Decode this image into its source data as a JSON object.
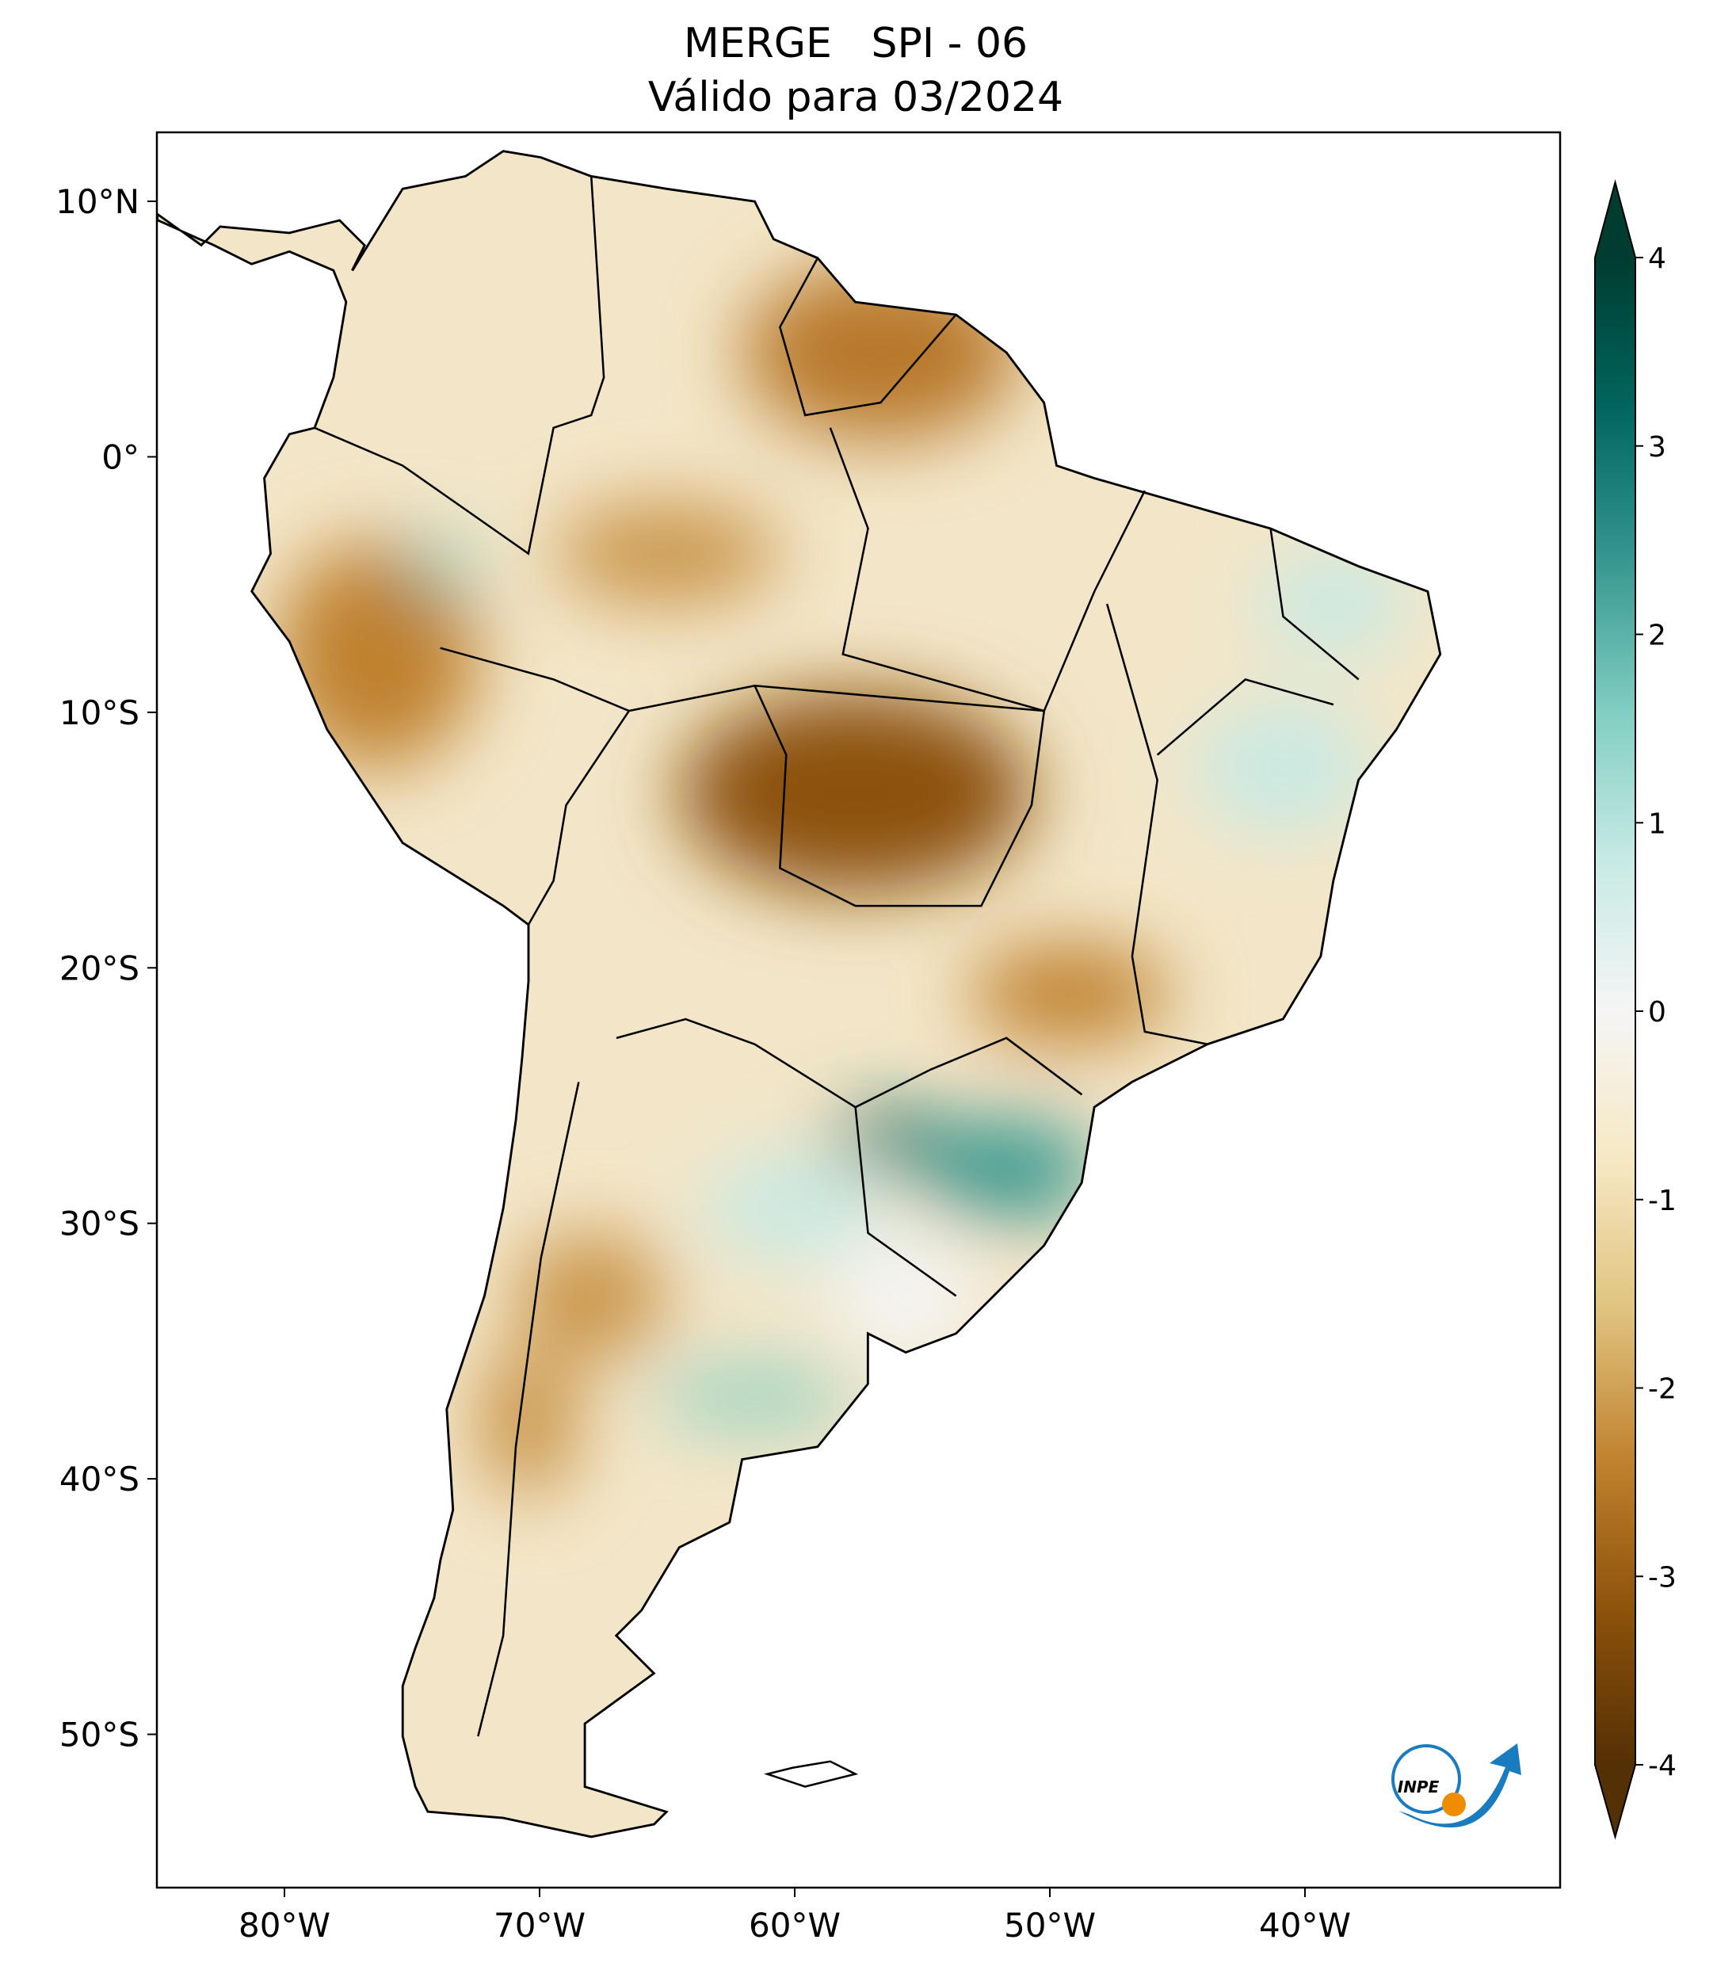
{
  "chart_data": {
    "type": "map",
    "title": "MERGE   SPI - 06",
    "subtitle": "Válido para 03/2024",
    "xlim": [
      -85,
      -30
    ],
    "ylim": [
      -56,
      12.7
    ],
    "xticks": [
      {
        "value": -80,
        "label": "80°W"
      },
      {
        "value": -70,
        "label": "70°W"
      },
      {
        "value": -60,
        "label": "60°W"
      },
      {
        "value": -50,
        "label": "50°W"
      },
      {
        "value": -40,
        "label": "40°W"
      }
    ],
    "yticks": [
      {
        "value": 10,
        "label": "10°N"
      },
      {
        "value": 0,
        "label": "0°"
      },
      {
        "value": -10,
        "label": "10°S"
      },
      {
        "value": -20,
        "label": "20°S"
      },
      {
        "value": -30,
        "label": "30°S"
      },
      {
        "value": -40,
        "label": "40°S"
      },
      {
        "value": -50,
        "label": "50°S"
      }
    ],
    "colorbar": {
      "lim": [
        -4,
        4
      ],
      "ticks": [
        -4,
        -3,
        -2,
        -1,
        0,
        1,
        2,
        3,
        4
      ],
      "colors": [
        "#543005",
        "#8c510a",
        "#bf812d",
        "#dfc27d",
        "#f6e8c3",
        "#f5f5f5",
        "#c7eae5",
        "#80cdc1",
        "#35978f",
        "#01665e",
        "#003c30"
      ]
    }
  },
  "logo": "INPE"
}
